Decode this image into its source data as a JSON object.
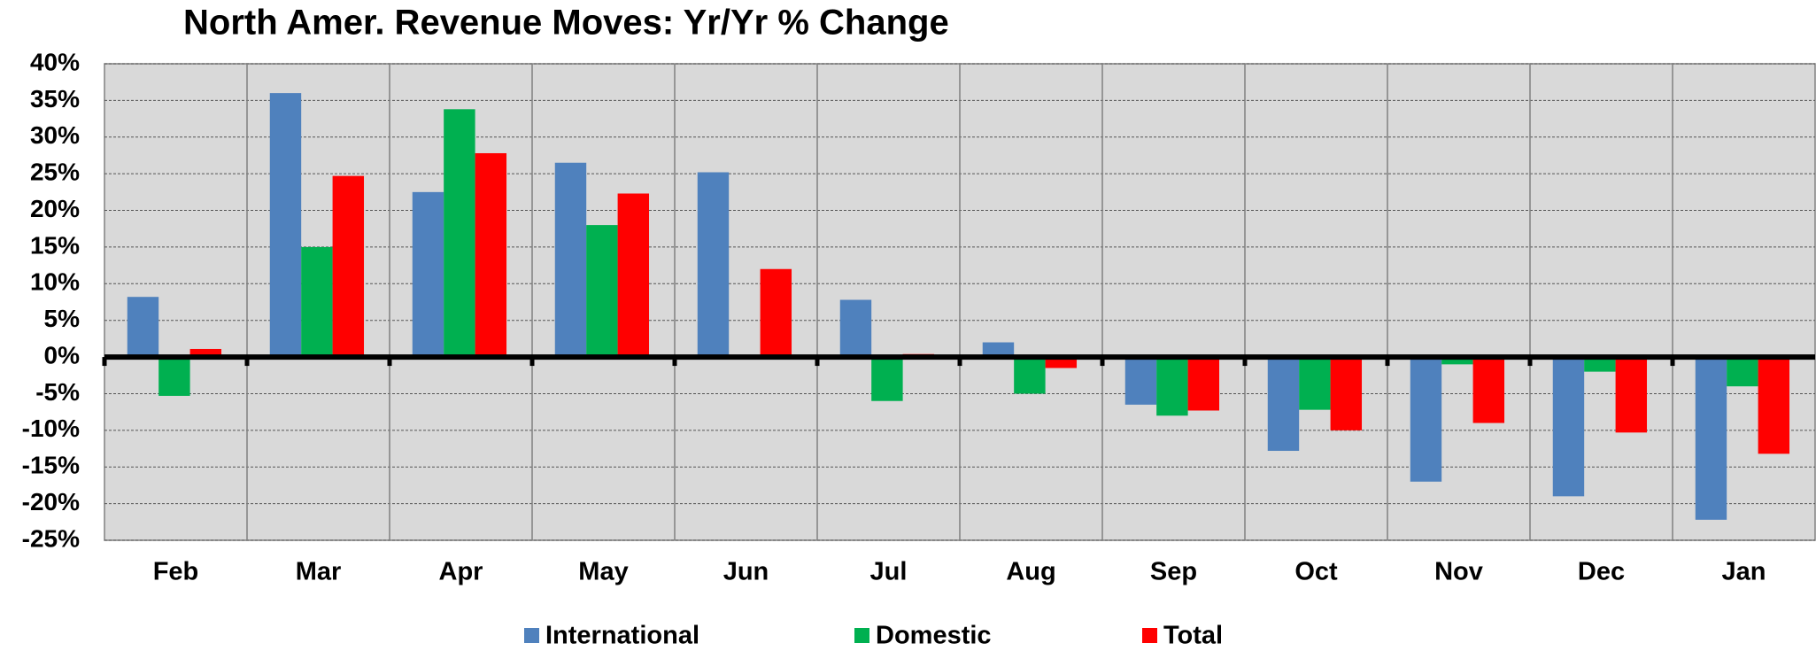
{
  "chart_data": {
    "type": "bar",
    "title": "North Amer. Revenue Moves: Yr/Yr % Change",
    "categories": [
      "Feb",
      "Mar",
      "Apr",
      "May",
      "Jun",
      "Jul",
      "Aug",
      "Sep",
      "Oct",
      "Nov",
      "Dec",
      "Jan"
    ],
    "series": [
      {
        "name": "International",
        "color": "#4f81bd",
        "values": [
          8.2,
          36,
          22.5,
          26.5,
          25.2,
          7.8,
          2,
          -6.5,
          -12.8,
          -17,
          -19,
          -22.2
        ]
      },
      {
        "name": "Domestic",
        "color": "#00b050",
        "values": [
          -5.3,
          15,
          33.8,
          18,
          0,
          -6,
          -5,
          -8,
          -7.2,
          -1,
          -2,
          -4
        ]
      },
      {
        "name": "Total",
        "color": "#ff0000",
        "values": [
          1.1,
          24.7,
          27.8,
          22.3,
          12,
          0.4,
          -1.5,
          -7.3,
          -10,
          -9,
          -10.3,
          -13.2
        ]
      }
    ],
    "ylim": [
      -25,
      40
    ],
    "yticks": [
      {
        "value": -25,
        "label": "-25%"
      },
      {
        "value": -20,
        "label": "-20%"
      },
      {
        "value": -15,
        "label": "-15%"
      },
      {
        "value": -10,
        "label": "-10%"
      },
      {
        "value": -5,
        "label": "-5%"
      },
      {
        "value": 0,
        "label": "0%"
      },
      {
        "value": 5,
        "label": "5%"
      },
      {
        "value": 10,
        "label": "10%"
      },
      {
        "value": 15,
        "label": "15%"
      },
      {
        "value": 20,
        "label": "20%"
      },
      {
        "value": 25,
        "label": "25%"
      },
      {
        "value": 30,
        "label": "30%"
      },
      {
        "value": 35,
        "label": "35%"
      },
      {
        "value": 40,
        "label": "40%"
      }
    ],
    "grid": true,
    "legend": "bottom"
  }
}
